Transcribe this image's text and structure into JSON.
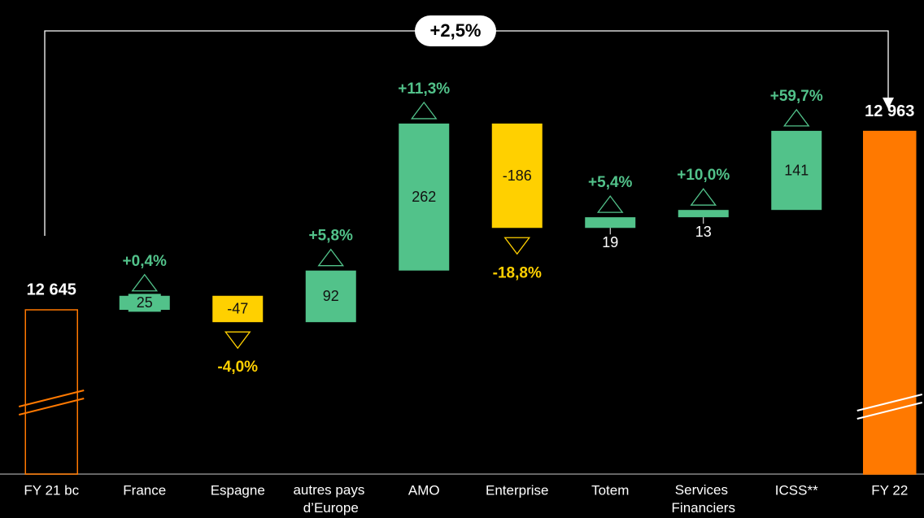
{
  "chart_data": {
    "type": "waterfall",
    "annotation": "+2,5%",
    "categories": [
      "FY 21 bc",
      "France",
      "Espagne",
      "autres pays d’Europe",
      "AMO",
      "Enterprise",
      "Totem",
      "Services Financiers",
      "ICSS**",
      "FY 22"
    ],
    "values": [
      12645,
      25,
      -47,
      92,
      262,
      -186,
      19,
      13,
      141,
      12963
    ],
    "value_labels": [
      "12 645",
      "25",
      "-47",
      "92",
      "262",
      "-186",
      "19",
      "13",
      "141",
      "12 963"
    ],
    "growth_labels": [
      null,
      "+0,4%",
      "-4,0%",
      "+5,8%",
      "+11,3%",
      "-18,8%",
      "+5,4%",
      "+10,0%",
      "+59,7%",
      null
    ],
    "colors": {
      "total": "#ff7900",
      "increase": "#52c28a",
      "decrease": "#ffd000"
    }
  }
}
